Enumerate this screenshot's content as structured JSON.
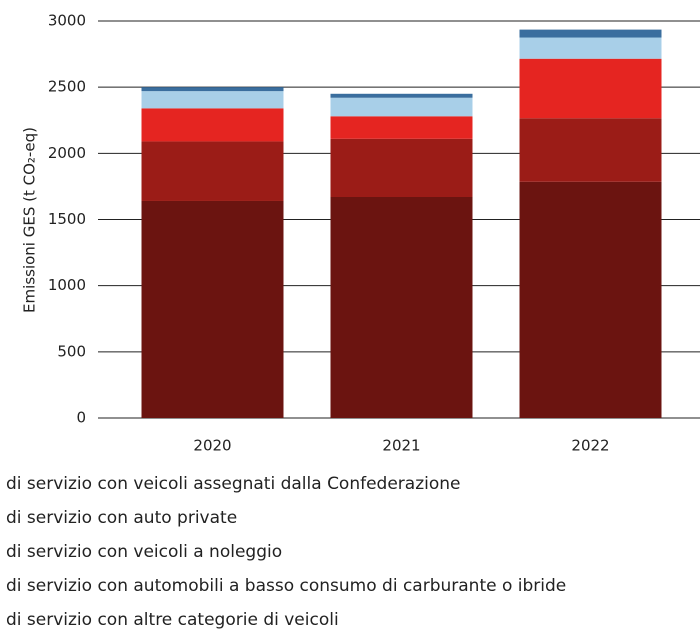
{
  "chart_data": {
    "type": "stacked_bar",
    "y_label": "Emissioni GES (t CO₂-eq)",
    "categories": [
      "2020",
      "2021",
      "2022"
    ],
    "series": [
      {
        "name": "di servizio con veicoli assegnati dalla Confederazione",
        "color": "#6b1410",
        "values": [
          1640,
          1670,
          1785
        ]
      },
      {
        "name": "di servizio con auto private",
        "color": "#9b1c17",
        "values": [
          450,
          440,
          480
        ]
      },
      {
        "name": "di servizio con veicoli a noleggio",
        "color": "#e52521",
        "values": [
          250,
          170,
          450
        ]
      },
      {
        "name": "di servizio con automobili a basso consumo di carburante o ibride",
        "color": "#a8cfe8",
        "values": [
          130,
          140,
          160
        ]
      },
      {
        "name": "di servizio con altre categorie di veicoli",
        "color": "#3a6e9e",
        "values": [
          30,
          30,
          60
        ]
      }
    ],
    "ylim": [
      0,
      3000
    ],
    "yticks": [
      0,
      500,
      1000,
      1500,
      2000,
      2500,
      3000
    ],
    "grid": true
  }
}
